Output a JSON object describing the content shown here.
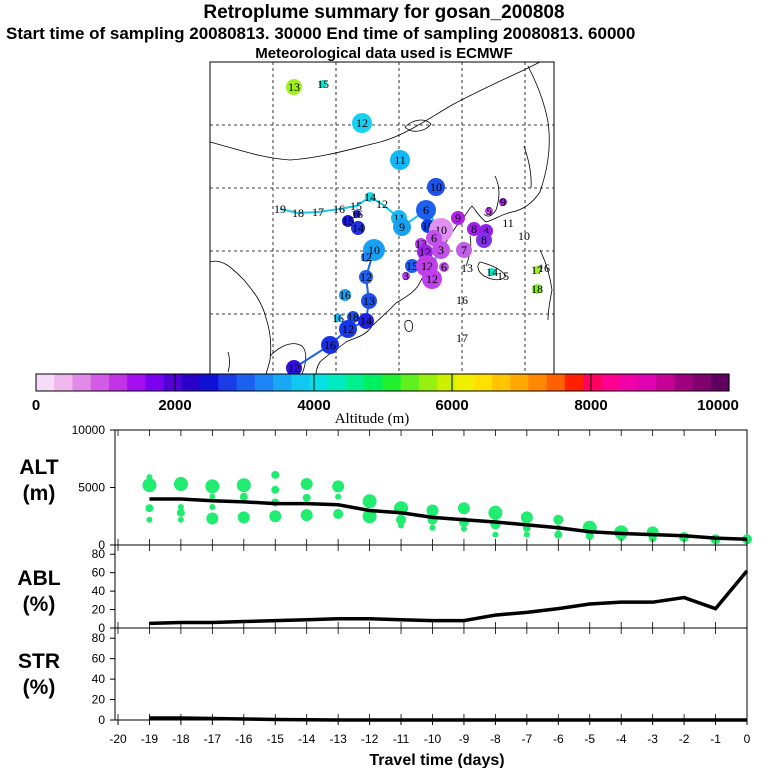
{
  "header": {
    "title": "Retroplume summary for gosan_200808",
    "subtitle": "Start time of sampling 20080813. 30000     End time of sampling 20080813. 60000",
    "met": "Meteorological data used is ECMWF"
  },
  "colorbar": {
    "label": "Altitude (m)",
    "ticks": [
      "0",
      "2000",
      "4000",
      "6000",
      "8000",
      "10000"
    ],
    "colors": [
      "#f6dcf6",
      "#eeb8ee",
      "#e28ae8",
      "#d35ce6",
      "#c232e6",
      "#a20ef0",
      "#7c00f0",
      "#5200d6",
      "#2a00c8",
      "#1010d4",
      "#1a3ce6",
      "#1c60f0",
      "#1c84f4",
      "#18a8f4",
      "#10c8f0",
      "#06e0e4",
      "#00ecc0",
      "#00f090",
      "#00f060",
      "#20f030",
      "#60f020",
      "#98f010",
      "#ccf000",
      "#f0f000",
      "#ffe000",
      "#ffc400",
      "#ffa800",
      "#ff8800",
      "#ff6000",
      "#ff2000",
      "#ff0060",
      "#ff0090",
      "#f000a8",
      "#e000b0",
      "#c80098",
      "#a00080",
      "#800070",
      "#600060"
    ]
  },
  "map_labels": [
    {
      "t": "13",
      "c": "#a0f020",
      "x": 294,
      "y": 87,
      "s": 16
    },
    {
      "t": "15",
      "c": "#00e8d0",
      "x": 323,
      "y": 84,
      "s": 8
    },
    {
      "t": "12",
      "c": "#18d0f0",
      "x": 362,
      "y": 123,
      "s": 20
    },
    {
      "t": "11",
      "c": "#10b8f4",
      "x": 400,
      "y": 160,
      "s": 20
    },
    {
      "t": "10",
      "c": "#1c50e8",
      "x": 436,
      "y": 187,
      "s": 18
    },
    {
      "t": "19",
      "c": "#18d8e8",
      "x": 280,
      "y": 209,
      "s": 0
    },
    {
      "t": "18",
      "c": "#18d8e8",
      "x": 298,
      "y": 213,
      "s": 0
    },
    {
      "t": "17",
      "c": "#18d8e8",
      "x": 318,
      "y": 212,
      "s": 0
    },
    {
      "t": "16",
      "c": "#18d8e8",
      "x": 339,
      "y": 209,
      "s": 0
    },
    {
      "t": "15",
      "c": "#18d8e8",
      "x": 356,
      "y": 206,
      "s": 0
    },
    {
      "t": "14",
      "c": "#18d8e8",
      "x": 370,
      "y": 197,
      "s": 10
    },
    {
      "t": "12",
      "c": "#18d8e8",
      "x": 382,
      "y": 204,
      "s": 0
    },
    {
      "t": "16",
      "c": "#2020e0",
      "x": 357,
      "y": 214,
      "s": 8
    },
    {
      "t": "15",
      "c": "#1818d8",
      "x": 348,
      "y": 221,
      "s": 12
    },
    {
      "t": "14",
      "c": "#2030e0",
      "x": 358,
      "y": 228,
      "s": 14
    },
    {
      "t": "11",
      "c": "#18b8f4",
      "x": 399,
      "y": 218,
      "s": 16
    },
    {
      "t": "9",
      "c": "#18a0f0",
      "x": 402,
      "y": 227,
      "s": 18
    },
    {
      "t": "6",
      "c": "#1c60f0",
      "x": 426,
      "y": 210,
      "s": 20
    },
    {
      "t": "10",
      "c": "#1040e0",
      "x": 428,
      "y": 226,
      "s": 14
    },
    {
      "t": "9",
      "c": "#b020e8",
      "x": 458,
      "y": 218,
      "s": 14
    },
    {
      "t": "8",
      "c": "#a020e8",
      "x": 474,
      "y": 229,
      "s": 14
    },
    {
      "t": "4",
      "c": "#9020e8",
      "x": 486,
      "y": 231,
      "s": 14
    },
    {
      "t": "5",
      "c": "#c040e8",
      "x": 489,
      "y": 211,
      "s": 8
    },
    {
      "t": "9",
      "c": "#a020e8",
      "x": 503,
      "y": 202,
      "s": 8
    },
    {
      "t": "10",
      "c": "#e090f0",
      "x": 441,
      "y": 230,
      "s": 24
    },
    {
      "t": "6",
      "c": "#c050e8",
      "x": 434,
      "y": 238,
      "s": 16
    },
    {
      "t": "8",
      "c": "#8030e8",
      "x": 484,
      "y": 240,
      "s": 16
    },
    {
      "t": "11",
      "c": "#d060f0",
      "x": 508,
      "y": 223,
      "s": 0
    },
    {
      "t": "10",
      "c": "#00c8c0",
      "x": 524,
      "y": 236,
      "s": 0
    },
    {
      "t": "10",
      "c": "#18a0f4",
      "x": 374,
      "y": 250,
      "s": 22
    },
    {
      "t": "12",
      "c": "#1c84f4",
      "x": 366,
      "y": 257,
      "s": 10
    },
    {
      "t": "13",
      "c": "#b040e8",
      "x": 421,
      "y": 244,
      "s": 12
    },
    {
      "t": "12",
      "c": "#9c20e8",
      "x": 425,
      "y": 252,
      "s": 16
    },
    {
      "t": "3",
      "c": "#c050e8",
      "x": 441,
      "y": 250,
      "s": 18
    },
    {
      "t": "7",
      "c": "#c060e8",
      "x": 464,
      "y": 250,
      "s": 16
    },
    {
      "t": "15",
      "c": "#1c60f0",
      "x": 412,
      "y": 266,
      "s": 14
    },
    {
      "t": "12",
      "c": "#c040e8",
      "x": 427,
      "y": 266,
      "s": 22
    },
    {
      "t": "6",
      "c": "#c050e8",
      "x": 444,
      "y": 267,
      "s": 10
    },
    {
      "t": "3",
      "c": "#b040e8",
      "x": 406,
      "y": 276,
      "s": 8
    },
    {
      "t": "12",
      "c": "#c040f0",
      "x": 432,
      "y": 279,
      "s": 20
    },
    {
      "t": "13",
      "c": "#00e8b0",
      "x": 467,
      "y": 268,
      "s": 0
    },
    {
      "t": "14",
      "c": "#00e8d0",
      "x": 492,
      "y": 272,
      "s": 8
    },
    {
      "t": "15",
      "c": "#00e8c8",
      "x": 503,
      "y": 276,
      "s": 0
    },
    {
      "t": "17",
      "c": "#a0f020",
      "x": 537,
      "y": 270,
      "s": 8
    },
    {
      "t": "16",
      "c": "#00e8a0",
      "x": 544,
      "y": 268,
      "s": 0
    },
    {
      "t": "18",
      "c": "#80f020",
      "x": 537,
      "y": 289,
      "s": 10
    },
    {
      "t": "16",
      "c": "#00e890",
      "x": 462,
      "y": 300,
      "s": 0
    },
    {
      "t": "17",
      "c": "#00e890",
      "x": 462,
      "y": 338,
      "s": 0
    },
    {
      "t": "12",
      "c": "#1c60f0",
      "x": 366,
      "y": 277,
      "s": 14
    },
    {
      "t": "16",
      "c": "#18a0f4",
      "x": 345,
      "y": 295,
      "s": 12
    },
    {
      "t": "13",
      "c": "#1c50e8",
      "x": 369,
      "y": 301,
      "s": 16
    },
    {
      "t": "16",
      "c": "#18b8f4",
      "x": 338,
      "y": 318,
      "s": 8
    },
    {
      "t": "18",
      "c": "#1c50e8",
      "x": 353,
      "y": 317,
      "s": 12
    },
    {
      "t": "14",
      "c": "#2020e0",
      "x": 366,
      "y": 321,
      "s": 16
    },
    {
      "t": "12",
      "c": "#1838e8",
      "x": 348,
      "y": 329,
      "s": 18
    },
    {
      "t": "16",
      "c": "#1a30e0",
      "x": 330,
      "y": 345,
      "s": 18
    },
    {
      "t": "12",
      "c": "#3010d8",
      "x": 294,
      "y": 368,
      "s": 16
    }
  ],
  "chart_data": [
    {
      "type": "scatter",
      "title": "ALT (m)",
      "ylabel": "ALT (m)",
      "ylim": [
        0,
        10000
      ],
      "yticks": [
        "0",
        "5000",
        "10000"
      ],
      "median_line": {
        "x": [
          -19,
          -18,
          -17,
          -16,
          -15,
          -14,
          -13,
          -12,
          -11,
          -10,
          -9,
          -8,
          -7,
          -6,
          -5,
          -4,
          -3,
          -2,
          -1,
          0
        ],
        "y": [
          4000,
          4000,
          3850,
          3750,
          3600,
          3600,
          3500,
          3000,
          2800,
          2400,
          2200,
          2000,
          1750,
          1500,
          1150,
          1000,
          900,
          800,
          600,
          500
        ]
      },
      "points": [
        {
          "x": -19,
          "y": 5200,
          "s": 7
        },
        {
          "x": -19,
          "y": 3200,
          "s": 4
        },
        {
          "x": -19,
          "y": 2200,
          "s": 3
        },
        {
          "x": -19,
          "y": 5900,
          "s": 3
        },
        {
          "x": -18,
          "y": 5300,
          "s": 7
        },
        {
          "x": -18,
          "y": 2800,
          "s": 4
        },
        {
          "x": -18,
          "y": 2200,
          "s": 3
        },
        {
          "x": -18,
          "y": 3300,
          "s": 3
        },
        {
          "x": -17,
          "y": 5100,
          "s": 7
        },
        {
          "x": -17,
          "y": 4200,
          "s": 3
        },
        {
          "x": -17,
          "y": 2300,
          "s": 6
        },
        {
          "x": -17,
          "y": 3300,
          "s": 3
        },
        {
          "x": -16,
          "y": 5200,
          "s": 7
        },
        {
          "x": -16,
          "y": 4200,
          "s": 4
        },
        {
          "x": -16,
          "y": 2400,
          "s": 6
        },
        {
          "x": -15,
          "y": 6100,
          "s": 4
        },
        {
          "x": -15,
          "y": 4800,
          "s": 4
        },
        {
          "x": -15,
          "y": 3700,
          "s": 4
        },
        {
          "x": -15,
          "y": 2500,
          "s": 6
        },
        {
          "x": -14,
          "y": 5300,
          "s": 6
        },
        {
          "x": -14,
          "y": 4100,
          "s": 4
        },
        {
          "x": -14,
          "y": 2600,
          "s": 6
        },
        {
          "x": -13,
          "y": 5100,
          "s": 6
        },
        {
          "x": -13,
          "y": 4200,
          "s": 3
        },
        {
          "x": -13,
          "y": 2700,
          "s": 5
        },
        {
          "x": -12,
          "y": 3800,
          "s": 7
        },
        {
          "x": -12,
          "y": 2500,
          "s": 7
        },
        {
          "x": -11,
          "y": 3200,
          "s": 7
        },
        {
          "x": -11,
          "y": 2200,
          "s": 5
        },
        {
          "x": -11,
          "y": 1700,
          "s": 3
        },
        {
          "x": -10,
          "y": 3000,
          "s": 6
        },
        {
          "x": -10,
          "y": 2200,
          "s": 5
        },
        {
          "x": -10,
          "y": 1500,
          "s": 3
        },
        {
          "x": -9,
          "y": 3200,
          "s": 6
        },
        {
          "x": -9,
          "y": 2000,
          "s": 5
        },
        {
          "x": -9,
          "y": 1400,
          "s": 3
        },
        {
          "x": -8,
          "y": 2800,
          "s": 7
        },
        {
          "x": -8,
          "y": 1800,
          "s": 5
        },
        {
          "x": -8,
          "y": 900,
          "s": 3
        },
        {
          "x": -7,
          "y": 2400,
          "s": 6
        },
        {
          "x": -7,
          "y": 1500,
          "s": 4
        },
        {
          "x": -7,
          "y": 900,
          "s": 3
        },
        {
          "x": -6,
          "y": 2200,
          "s": 5
        },
        {
          "x": -6,
          "y": 1500,
          "s": 3
        },
        {
          "x": -6,
          "y": 900,
          "s": 4
        },
        {
          "x": -5,
          "y": 1500,
          "s": 7
        },
        {
          "x": -5,
          "y": 800,
          "s": 4
        },
        {
          "x": -4,
          "y": 1100,
          "s": 7
        },
        {
          "x": -4,
          "y": 700,
          "s": 4
        },
        {
          "x": -3,
          "y": 1100,
          "s": 6
        },
        {
          "x": -3,
          "y": 600,
          "s": 4
        },
        {
          "x": -2,
          "y": 700,
          "s": 5
        },
        {
          "x": -1,
          "y": 500,
          "s": 5
        },
        {
          "x": 0,
          "y": 500,
          "s": 5
        }
      ]
    },
    {
      "type": "line",
      "title": "ABL (%)",
      "ylabel": "ABL (%)",
      "ylim": [
        0,
        90
      ],
      "yticks": [
        "0",
        "20",
        "40",
        "60",
        "80"
      ],
      "x": [
        -19,
        -18,
        -17,
        -16,
        -15,
        -14,
        -13,
        -12,
        -11,
        -10,
        -9,
        -8,
        -7,
        -6,
        -5,
        -4,
        -3,
        -2,
        -1,
        0
      ],
      "y": [
        5,
        6,
        6,
        7,
        8,
        9,
        10,
        10,
        9,
        8,
        8,
        14,
        17,
        21,
        26,
        28,
        28,
        33,
        21,
        62
      ]
    },
    {
      "type": "line",
      "title": "STR (%)",
      "ylabel": "STR (%)",
      "ylim": [
        0,
        90
      ],
      "yticks": [
        "0",
        "20",
        "40",
        "60",
        "80"
      ],
      "x": [
        -19,
        -18,
        -17,
        -16,
        -15,
        -14,
        -13,
        -12,
        -11,
        -10,
        -9,
        -8,
        -7,
        -6,
        -5,
        -4,
        -3,
        -2,
        -1,
        0
      ],
      "y": [
        2,
        2,
        1.5,
        1,
        0.5,
        0.2,
        0,
        0,
        0,
        0,
        0,
        0,
        0,
        0,
        0,
        0,
        0,
        0,
        0,
        0
      ],
      "xlabel": "Travel time (days)",
      "xticks": [
        "-20",
        "-19",
        "-18",
        "-17",
        "-16",
        "-15",
        "-14",
        "-13",
        "-12",
        "-11",
        "-10",
        "-9",
        "-8",
        "-7",
        "-6",
        "-5",
        "-4",
        "-3",
        "-2",
        "-1",
        "0"
      ]
    }
  ]
}
